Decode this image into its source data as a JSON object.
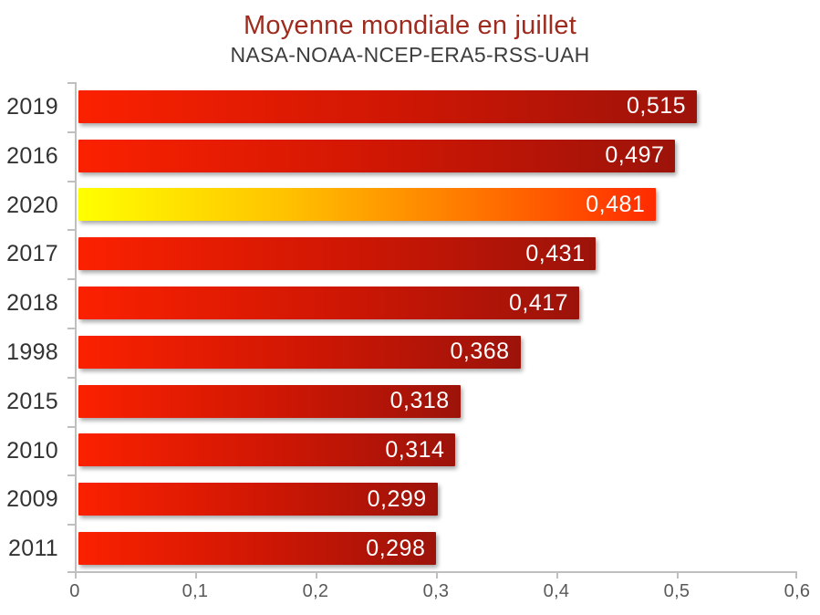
{
  "chart_data": {
    "type": "bar",
    "orientation": "horizontal",
    "title": "Moyenne mondiale en juillet",
    "subtitle": "NASA-NOAA-NCEP-ERA5-RSS-UAH",
    "categories": [
      "2019",
      "2016",
      "2020",
      "2017",
      "2018",
      "1998",
      "2015",
      "2010",
      "2009",
      "2011"
    ],
    "values": [
      0.515,
      0.497,
      0.481,
      0.431,
      0.417,
      0.368,
      0.318,
      0.314,
      0.299,
      0.298
    ],
    "value_labels": [
      "0,515",
      "0,497",
      "0,481",
      "0,431",
      "0,417",
      "0,368",
      "0,318",
      "0,314",
      "0,299",
      "0,298"
    ],
    "highlight_index": 2,
    "xlim": [
      0,
      0.6
    ],
    "x_ticks": [
      0,
      0.1,
      0.2,
      0.3,
      0.4,
      0.5,
      0.6
    ],
    "x_tick_labels": [
      "0",
      "0,1",
      "0,2",
      "0,3",
      "0,4",
      "0,5",
      "0,6"
    ],
    "grid": "off",
    "legend": "none",
    "colors": {
      "title_color": "#9e2b1e",
      "subtitle_color": "#3d3d3d",
      "axis_color": "#bfbfbf",
      "category_label_color": "#333333",
      "x_tick_label_color": "#595959",
      "value_label_color": "#ffffff",
      "bar_gradient": [
        "#fb2100",
        "#cc1604",
        "#9c130a"
      ],
      "highlight_gradient": [
        "#ffff00",
        "#ffc400",
        "#ff7e00",
        "#ff2b00"
      ]
    }
  }
}
